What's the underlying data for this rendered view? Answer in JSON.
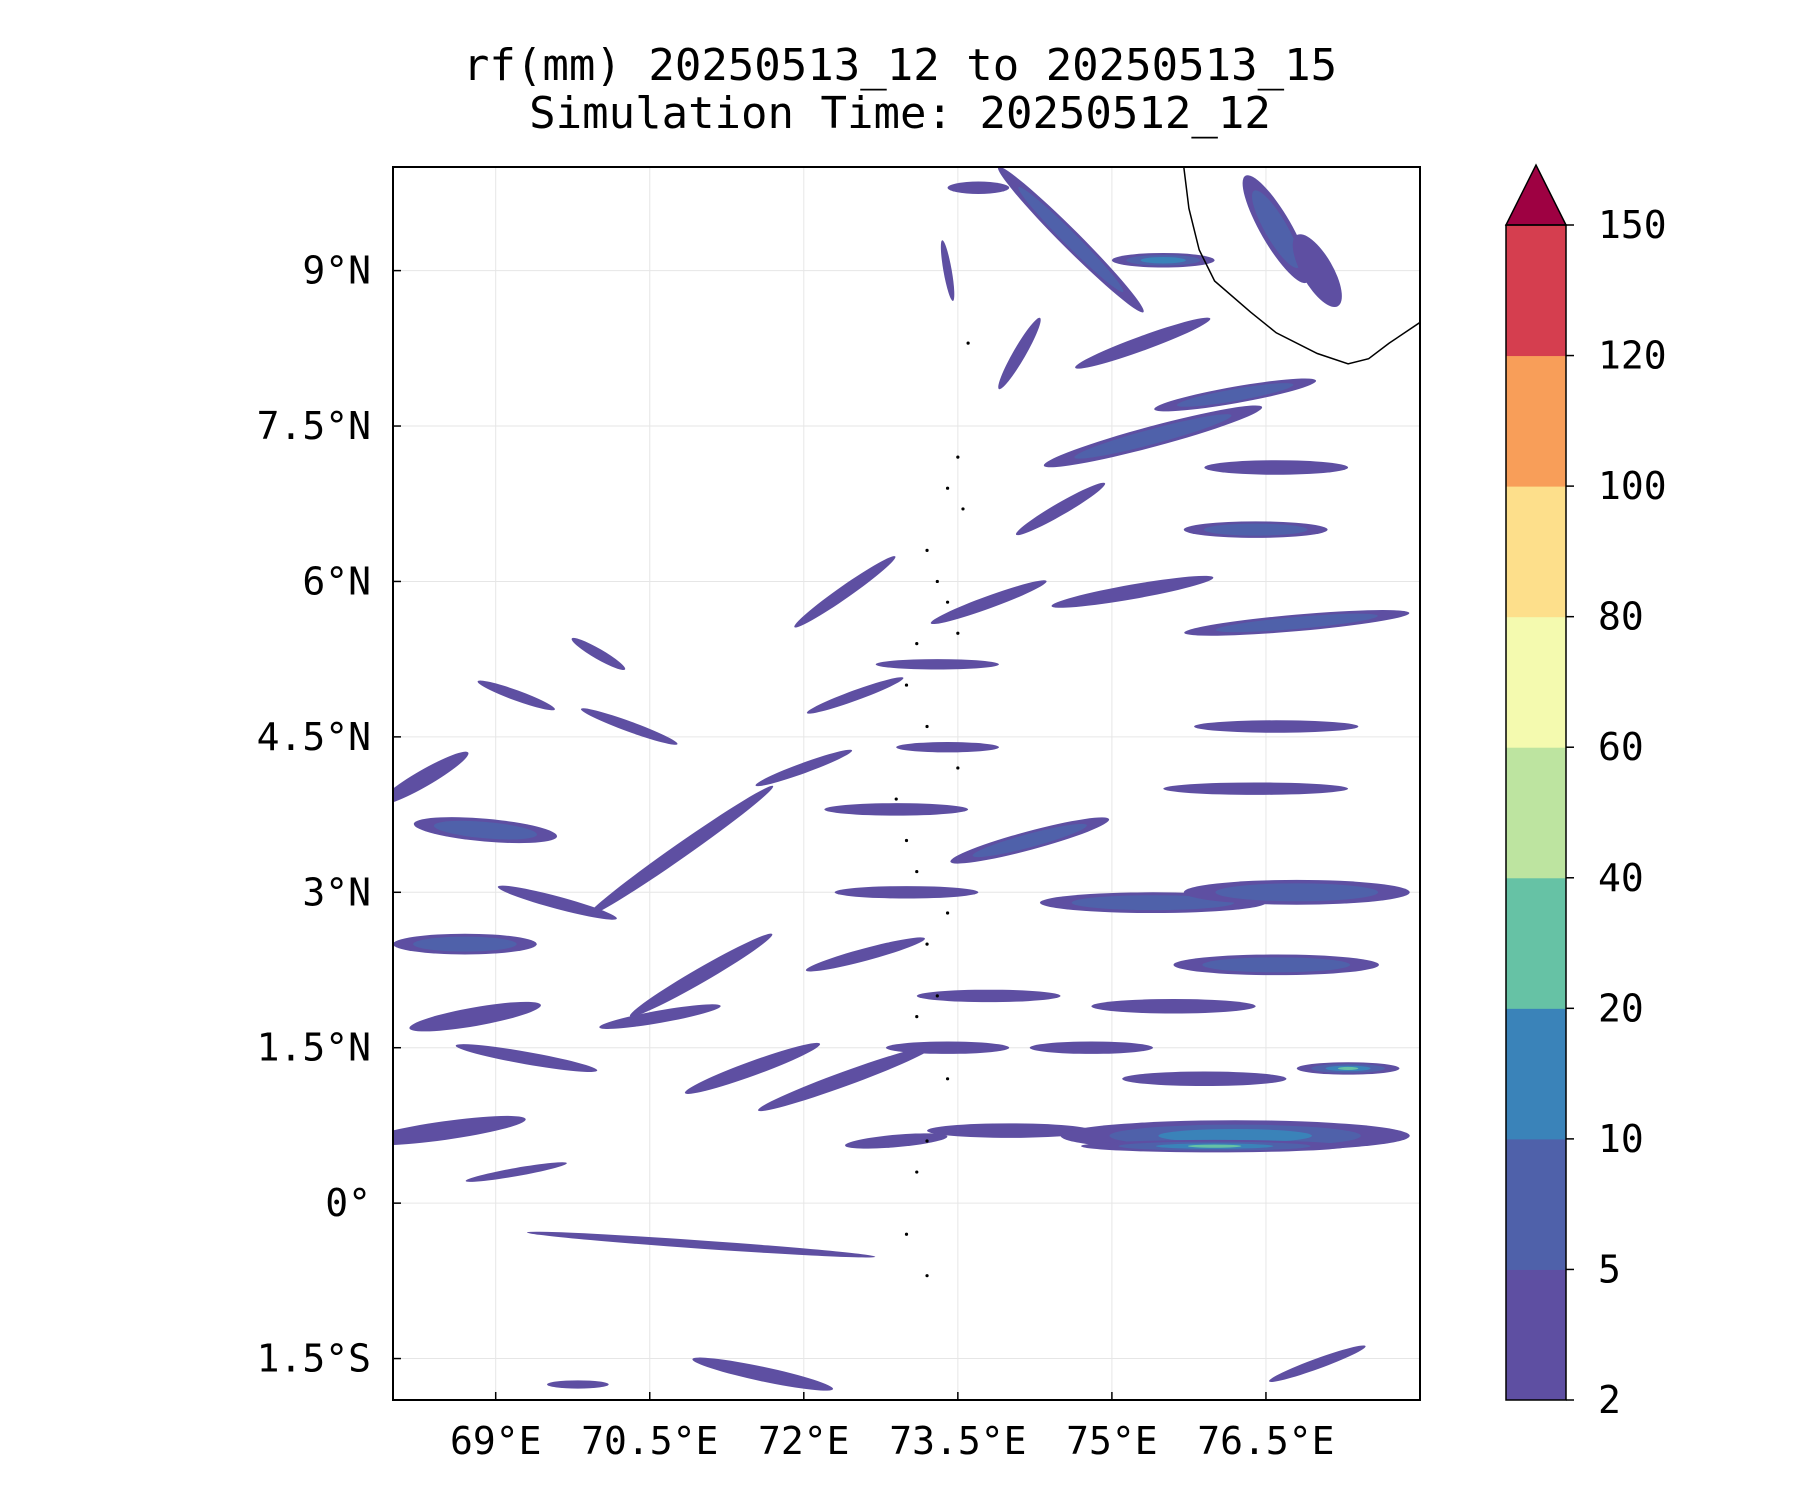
{
  "chart_data": {
    "type": "heatmap",
    "title": "rf(mm) 20250513_12 to 20250513_15",
    "subtitle": "Simulation Time: 20250512_12",
    "xlabel": "",
    "ylabel": "",
    "x_range": [
      68.0,
      78.0
    ],
    "y_range": [
      -1.9,
      10.0
    ],
    "x_ticks": [
      {
        "value": 69.0,
        "label": "69°E"
      },
      {
        "value": 70.5,
        "label": "70.5°E"
      },
      {
        "value": 72.0,
        "label": "72°E"
      },
      {
        "value": 73.5,
        "label": "73.5°E"
      },
      {
        "value": 75.0,
        "label": "75°E"
      },
      {
        "value": 76.5,
        "label": "76.5°E"
      }
    ],
    "y_ticks": [
      {
        "value": 9.0,
        "label": "9°N"
      },
      {
        "value": 7.5,
        "label": "7.5°N"
      },
      {
        "value": 6.0,
        "label": "6°N"
      },
      {
        "value": 4.5,
        "label": "4.5°N"
      },
      {
        "value": 3.0,
        "label": "3°N"
      },
      {
        "value": 1.5,
        "label": "1.5°N"
      },
      {
        "value": 0.0,
        "label": "0°"
      },
      {
        "value": -1.5,
        "label": "1.5°S"
      }
    ],
    "grid": true,
    "colorbar": {
      "levels": [
        2,
        5,
        10,
        20,
        40,
        60,
        80,
        100,
        120,
        150
      ],
      "labels": [
        "2",
        "5",
        "10",
        "20",
        "40",
        "60",
        "80",
        "100",
        "120",
        "150"
      ],
      "colors": [
        "#5e4fa2",
        "#4f61aa",
        "#3a83b9",
        "#66c2a5",
        "#bde4a0",
        "#f4faaf",
        "#fddf8b",
        "#f89e59",
        "#d53e4f"
      ],
      "extend_color": "#9e0142",
      "extend": "max"
    },
    "rain_bands": [
      {
        "lon": 68.9,
        "lat": 3.6,
        "len": 1.4,
        "wid": 0.22,
        "angle": 5,
        "level": 1
      },
      {
        "lon": 68.7,
        "lat": 2.5,
        "len": 1.4,
        "wid": 0.2,
        "angle": 0,
        "level": 1
      },
      {
        "lon": 68.8,
        "lat": 1.8,
        "len": 1.3,
        "wid": 0.18,
        "angle": -10,
        "level": 0
      },
      {
        "lon": 68.5,
        "lat": 0.7,
        "len": 1.6,
        "wid": 0.18,
        "angle": -8,
        "level": 0
      },
      {
        "lon": 68.3,
        "lat": 4.1,
        "len": 1.0,
        "wid": 0.16,
        "angle": -30,
        "level": 0
      },
      {
        "lon": 70.8,
        "lat": 3.4,
        "len": 2.2,
        "wid": 0.14,
        "angle": -35,
        "level": 0
      },
      {
        "lon": 71.0,
        "lat": 2.2,
        "len": 1.6,
        "wid": 0.14,
        "angle": -30,
        "level": 0
      },
      {
        "lon": 71.5,
        "lat": 1.3,
        "len": 1.4,
        "wid": 0.14,
        "angle": -20,
        "level": 0
      },
      {
        "lon": 71.0,
        "lat": -0.4,
        "len": 3.4,
        "wid": 0.08,
        "angle": 4,
        "level": 0
      },
      {
        "lon": 71.6,
        "lat": -1.65,
        "len": 1.4,
        "wid": 0.14,
        "angle": 12,
        "level": 0
      },
      {
        "lon": 72.4,
        "lat": 1.2,
        "len": 1.8,
        "wid": 0.14,
        "angle": -20,
        "level": 0
      },
      {
        "lon": 73.0,
        "lat": 3.0,
        "len": 1.4,
        "wid": 0.12,
        "angle": 0,
        "level": 0
      },
      {
        "lon": 73.8,
        "lat": 2.0,
        "len": 1.4,
        "wid": 0.12,
        "angle": 0,
        "level": 0
      },
      {
        "lon": 74.0,
        "lat": 0.7,
        "len": 1.6,
        "wid": 0.14,
        "angle": 0,
        "level": 0
      },
      {
        "lon": 74.2,
        "lat": 3.5,
        "len": 1.6,
        "wid": 0.18,
        "angle": -15,
        "level": 1
      },
      {
        "lon": 75.4,
        "lat": 2.9,
        "len": 2.2,
        "wid": 0.2,
        "angle": 0,
        "level": 1
      },
      {
        "lon": 76.8,
        "lat": 3.0,
        "len": 2.2,
        "wid": 0.24,
        "angle": 0,
        "level": 1
      },
      {
        "lon": 76.6,
        "lat": 2.3,
        "len": 2.0,
        "wid": 0.2,
        "angle": 0,
        "level": 1
      },
      {
        "lon": 75.6,
        "lat": 1.9,
        "len": 1.6,
        "wid": 0.14,
        "angle": 0,
        "level": 0
      },
      {
        "lon": 76.2,
        "lat": 0.65,
        "len": 3.4,
        "wid": 0.3,
        "angle": 0,
        "level": 2
      },
      {
        "lon": 76.0,
        "lat": 0.55,
        "len": 2.6,
        "wid": 0.12,
        "angle": 0,
        "level": 3
      },
      {
        "lon": 75.9,
        "lat": 1.2,
        "len": 1.6,
        "wid": 0.14,
        "angle": 0,
        "level": 0
      },
      {
        "lon": 77.3,
        "lat": 1.3,
        "len": 1.0,
        "wid": 0.12,
        "angle": 0,
        "level": 3
      },
      {
        "lon": 76.4,
        "lat": 4.0,
        "len": 1.8,
        "wid": 0.12,
        "angle": 0,
        "level": 0
      },
      {
        "lon": 76.6,
        "lat": 4.6,
        "len": 1.6,
        "wid": 0.12,
        "angle": 0,
        "level": 0
      },
      {
        "lon": 76.8,
        "lat": 5.6,
        "len": 2.2,
        "wid": 0.16,
        "angle": -5,
        "level": 1
      },
      {
        "lon": 75.2,
        "lat": 5.9,
        "len": 1.6,
        "wid": 0.14,
        "angle": -10,
        "level": 0
      },
      {
        "lon": 76.4,
        "lat": 6.5,
        "len": 1.4,
        "wid": 0.16,
        "angle": 0,
        "level": 1
      },
      {
        "lon": 74.5,
        "lat": 6.7,
        "len": 1.0,
        "wid": 0.12,
        "angle": -30,
        "level": 0
      },
      {
        "lon": 75.4,
        "lat": 7.4,
        "len": 2.2,
        "wid": 0.2,
        "angle": -15,
        "level": 1
      },
      {
        "lon": 76.2,
        "lat": 7.8,
        "len": 1.6,
        "wid": 0.16,
        "angle": -10,
        "level": 1
      },
      {
        "lon": 76.6,
        "lat": 7.1,
        "len": 1.4,
        "wid": 0.14,
        "angle": 0,
        "level": 0
      },
      {
        "lon": 75.3,
        "lat": 8.3,
        "len": 1.4,
        "wid": 0.14,
        "angle": -20,
        "level": 0
      },
      {
        "lon": 74.6,
        "lat": 9.3,
        "len": 2.0,
        "wid": 0.18,
        "angle": 45,
        "level": 1
      },
      {
        "lon": 75.5,
        "lat": 9.1,
        "len": 1.0,
        "wid": 0.14,
        "angle": 0,
        "level": 2
      },
      {
        "lon": 76.6,
        "lat": 9.4,
        "len": 1.2,
        "wid": 0.3,
        "angle": 60,
        "level": 1
      },
      {
        "lon": 77.0,
        "lat": 9.0,
        "len": 0.8,
        "wid": 0.3,
        "angle": 60,
        "level": 0
      },
      {
        "lon": 73.7,
        "lat": 9.8,
        "len": 0.6,
        "wid": 0.12,
        "angle": 0,
        "level": 0
      },
      {
        "lon": 73.4,
        "lat": 9.0,
        "len": 0.6,
        "wid": 0.08,
        "angle": 80,
        "level": 0
      },
      {
        "lon": 74.1,
        "lat": 8.2,
        "len": 0.8,
        "wid": 0.12,
        "angle": -60,
        "level": 0
      },
      {
        "lon": 72.4,
        "lat": 5.9,
        "len": 1.2,
        "wid": 0.12,
        "angle": -35,
        "level": 0
      },
      {
        "lon": 73.3,
        "lat": 5.2,
        "len": 1.2,
        "wid": 0.1,
        "angle": 0,
        "level": 0
      },
      {
        "lon": 73.8,
        "lat": 5.8,
        "len": 1.2,
        "wid": 0.12,
        "angle": -20,
        "level": 0
      },
      {
        "lon": 72.5,
        "lat": 4.9,
        "len": 1.0,
        "wid": 0.1,
        "angle": -20,
        "level": 0
      },
      {
        "lon": 73.4,
        "lat": 4.4,
        "len": 1.0,
        "wid": 0.1,
        "angle": 0,
        "level": 0
      },
      {
        "lon": 70.3,
        "lat": 4.6,
        "len": 1.0,
        "wid": 0.1,
        "angle": 20,
        "level": 0
      },
      {
        "lon": 69.2,
        "lat": 4.9,
        "len": 0.8,
        "wid": 0.1,
        "angle": 20,
        "level": 0
      },
      {
        "lon": 70.0,
        "lat": 5.3,
        "len": 0.6,
        "wid": 0.1,
        "angle": 30,
        "level": 0
      },
      {
        "lon": 72.0,
        "lat": 4.2,
        "len": 1.0,
        "wid": 0.1,
        "angle": -20,
        "level": 0
      },
      {
        "lon": 72.9,
        "lat": 3.8,
        "len": 1.4,
        "wid": 0.12,
        "angle": 0,
        "level": 0
      },
      {
        "lon": 69.6,
        "lat": 2.9,
        "len": 1.2,
        "wid": 0.12,
        "angle": 15,
        "level": 0
      },
      {
        "lon": 69.3,
        "lat": 1.4,
        "len": 1.4,
        "wid": 0.12,
        "angle": 10,
        "level": 0
      },
      {
        "lon": 70.6,
        "lat": 1.8,
        "len": 1.2,
        "wid": 0.12,
        "angle": -10,
        "level": 0
      },
      {
        "lon": 72.6,
        "lat": 2.4,
        "len": 1.2,
        "wid": 0.12,
        "angle": -15,
        "level": 0
      },
      {
        "lon": 73.4,
        "lat": 1.5,
        "len": 1.2,
        "wid": 0.12,
        "angle": 0,
        "level": 0
      },
      {
        "lon": 74.8,
        "lat": 1.5,
        "len": 1.2,
        "wid": 0.12,
        "angle": 0,
        "level": 0
      },
      {
        "lon": 69.2,
        "lat": 0.3,
        "len": 1.0,
        "wid": 0.08,
        "angle": -10,
        "level": 0
      },
      {
        "lon": 72.9,
        "lat": 0.6,
        "len": 1.0,
        "wid": 0.12,
        "angle": -5,
        "level": 0
      },
      {
        "lon": 77.0,
        "lat": -1.55,
        "len": 1.0,
        "wid": 0.1,
        "angle": -20,
        "level": 0
      },
      {
        "lon": 69.8,
        "lat": -1.75,
        "len": 0.6,
        "wid": 0.08,
        "angle": 0,
        "level": 0
      }
    ],
    "coastline_india": [
      [
        75.7,
        10.0
      ],
      [
        75.75,
        9.6
      ],
      [
        75.85,
        9.2
      ],
      [
        76.0,
        8.9
      ],
      [
        76.35,
        8.6
      ],
      [
        76.6,
        8.4
      ],
      [
        77.0,
        8.2
      ],
      [
        77.3,
        8.1
      ],
      [
        77.5,
        8.15
      ],
      [
        77.7,
        8.3
      ],
      [
        78.0,
        8.5
      ]
    ],
    "islands": [
      [
        73.6,
        8.3
      ],
      [
        73.5,
        7.2
      ],
      [
        73.4,
        6.9
      ],
      [
        73.55,
        6.7
      ],
      [
        73.2,
        6.3
      ],
      [
        73.3,
        6.0
      ],
      [
        73.4,
        5.8
      ],
      [
        73.5,
        5.5
      ],
      [
        73.1,
        5.4
      ],
      [
        73.0,
        5.0
      ],
      [
        73.2,
        4.6
      ],
      [
        73.5,
        4.2
      ],
      [
        72.9,
        3.9
      ],
      [
        73.0,
        3.5
      ],
      [
        73.1,
        3.2
      ],
      [
        73.4,
        2.8
      ],
      [
        73.2,
        2.5
      ],
      [
        73.3,
        2.0
      ],
      [
        73.1,
        1.8
      ],
      [
        73.4,
        1.2
      ],
      [
        73.2,
        0.6
      ],
      [
        73.1,
        0.3
      ],
      [
        73.0,
        -0.3
      ],
      [
        73.2,
        -0.7
      ]
    ]
  }
}
